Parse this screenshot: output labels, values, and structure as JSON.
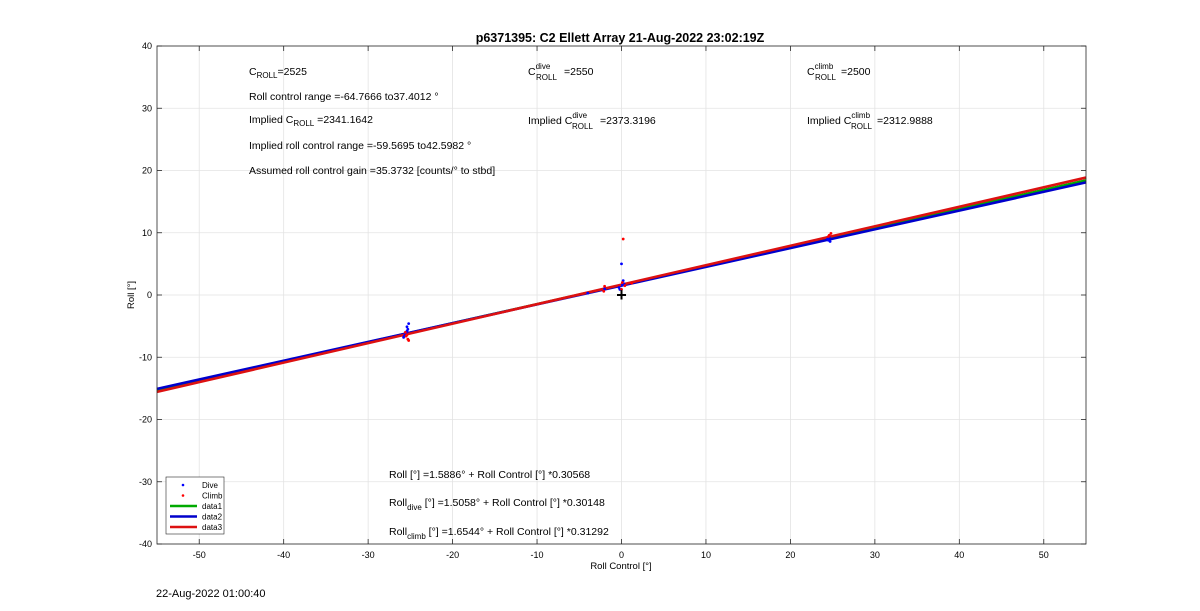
{
  "title": "p6371395: C2 Ellett Array 21-Aug-2022 23:02:19Z",
  "footer_timestamp": "22-Aug-2022 01:00:40",
  "annotations": {
    "c_roll": {
      "base": "C",
      "sub": "ROLL",
      "tail": "=2525"
    },
    "c_roll_dive": {
      "base": "C",
      "sup": "dive",
      "sub": "ROLL",
      "tail": "=2550"
    },
    "c_roll_climb": {
      "base": "C",
      "sup": "climb",
      "sub": "ROLL",
      "tail": "=2500"
    },
    "roll_control_range": "Roll control range =-64.7666 to37.4012 °",
    "implied_c_roll": {
      "pre": "Implied C",
      "sub": "ROLL",
      "tail": " =2341.1642"
    },
    "implied_c_roll_dive": {
      "pre": "Implied C",
      "sup": "dive",
      "sub": "ROLL",
      "tail": "=2373.3196"
    },
    "implied_c_roll_climb": {
      "pre": "Implied C",
      "sup": "climb",
      "sub": "ROLL",
      "tail": "=2312.9888"
    },
    "implied_roll_range": "Implied roll control range =-59.5695 to42.5982 °",
    "assumed_gain": "Assumed roll control gain =35.3732 [counts/° to stbd]",
    "fit_all": {
      "pre": "Roll [°] =1.5886° + Roll Control [°] *0.30568"
    },
    "fit_dive": {
      "pre": "Roll",
      "sub": "dive",
      "tail": " [°] =1.5058° + Roll Control [°] *0.30148"
    },
    "fit_climb": {
      "pre": "Roll",
      "sub": "climb",
      "tail": " [°] =1.6544° + Roll Control [°] *0.31292"
    }
  },
  "chart_data": {
    "type": "scatter",
    "title": "p6371395: C2 Ellett Array 21-Aug-2022 23:02:19Z",
    "xlabel": "Roll Control [°]",
    "ylabel": "Roll [°]",
    "xlim": [
      -55,
      55
    ],
    "ylim": [
      -40,
      40
    ],
    "xticks": [
      -50,
      -40,
      -30,
      -20,
      -10,
      0,
      10,
      20,
      30,
      40,
      50
    ],
    "yticks": [
      -40,
      -30,
      -20,
      -10,
      0,
      10,
      20,
      30,
      40
    ],
    "grid": true,
    "legend_position": "bottom-left",
    "series": [
      {
        "name": "Dive",
        "kind": "points",
        "color": "#0000ff",
        "points": [
          [
            -25.6,
            -6.4
          ],
          [
            -25.5,
            -6.0
          ],
          [
            -25.4,
            -5.8
          ],
          [
            -25.7,
            -6.6
          ],
          [
            -25.3,
            -5.5
          ],
          [
            -25.6,
            -6.2
          ],
          [
            -25.2,
            -4.6
          ],
          [
            -25.4,
            -5.1
          ],
          [
            -25.8,
            -6.8
          ],
          [
            -25.5,
            -6.1
          ],
          [
            -4.0,
            0.3
          ],
          [
            -2.0,
            1.0
          ],
          [
            -0.3,
            1.2
          ],
          [
            0.1,
            1.6
          ],
          [
            0.2,
            2.3
          ],
          [
            0.0,
            5.0
          ],
          [
            0.3,
            1.8
          ],
          [
            -0.2,
            0.9
          ],
          [
            24.5,
            8.8
          ],
          [
            24.6,
            9.3
          ],
          [
            24.4,
            9.0
          ],
          [
            24.7,
            8.6
          ]
        ]
      },
      {
        "name": "Climb",
        "kind": "points",
        "color": "#ff0000",
        "points": [
          [
            -25.5,
            -6.6
          ],
          [
            -25.3,
            -7.1
          ],
          [
            -25.6,
            -6.0
          ],
          [
            -25.4,
            -6.4
          ],
          [
            -25.2,
            -7.3
          ],
          [
            -2.0,
            1.4
          ],
          [
            -2.1,
            0.6
          ],
          [
            0.2,
            9.0
          ],
          [
            0.1,
            2.0
          ],
          [
            0.4,
            1.5
          ],
          [
            0.0,
            0.9
          ],
          [
            1.2,
            1.9
          ],
          [
            24.6,
            9.6
          ],
          [
            24.8,
            9.9
          ],
          [
            24.5,
            9.4
          ]
        ]
      },
      {
        "name": "data1",
        "kind": "line",
        "color": "#00aa00",
        "intercept": 1.5886,
        "slope": 0.30568
      },
      {
        "name": "data2",
        "kind": "line",
        "color": "#0000cc",
        "intercept": 1.5058,
        "slope": 0.30148
      },
      {
        "name": "data3",
        "kind": "line",
        "color": "#dd1111",
        "intercept": 1.6544,
        "slope": 0.31292
      }
    ],
    "marker": {
      "label": "+",
      "x": 0,
      "y": 0,
      "color": "#000000"
    }
  }
}
